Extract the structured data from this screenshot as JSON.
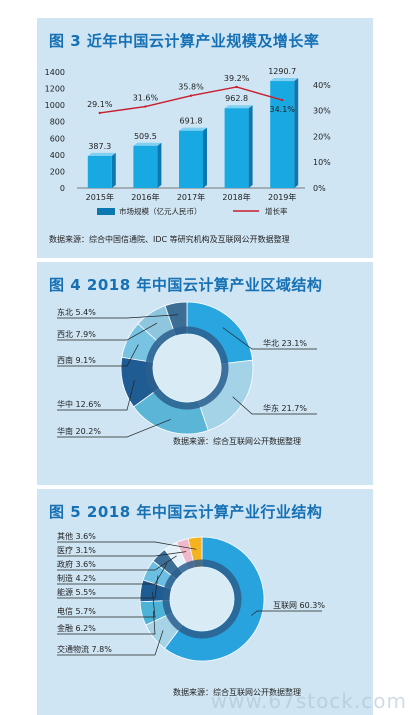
{
  "colors": {
    "panel_bg": "#cfe5f3",
    "title": "#1570b4",
    "bar": "#19a9e2",
    "bar_side": "#0d77b0",
    "line": "#c81e2e",
    "donut_dark": "#2b5f8e"
  },
  "figure3": {
    "title": "图 3  近年中国云计算产业规模及增长率",
    "source": "数据来源：综合中国信通院、IDC 等研究机构及互联网公开数据整理"
  },
  "figure4": {
    "title": "图 4  2018 年中国云计算产业区域结构",
    "source": "数据来源：综合互联网公开数据整理"
  },
  "figure5": {
    "title": "图 5  2018 年中国云计算产业行业结构",
    "source": "数据来源：综合互联网公开数据整理"
  },
  "watermark": "www.67stock.com",
  "chart_data": [
    {
      "type": "bar",
      "categories": [
        "2015年",
        "2016年",
        "2017年",
        "2018年",
        "2019年"
      ],
      "series": [
        {
          "name": "市场规模（亿元人民币）",
          "type": "bar",
          "axis": "left",
          "values": [
            387.3,
            509.5,
            691.8,
            962.8,
            1290.7
          ],
          "labels": [
            "387.3",
            "509.5",
            "691.8",
            "962.8",
            "1290.7"
          ]
        },
        {
          "name": "增长率",
          "type": "line",
          "axis": "right",
          "values": [
            29.1,
            31.6,
            35.8,
            39.2,
            34.1
          ],
          "labels": [
            "29.1%",
            "31.6%",
            "35.8%",
            "39.2%",
            "34.1%"
          ]
        }
      ],
      "ylim": [
        0,
        1400
      ],
      "yticks": [
        "0",
        "200",
        "400",
        "600",
        "800",
        "1000",
        "1200",
        "1400"
      ],
      "y2lim": [
        0,
        45
      ],
      "y2ticks": [
        "0%",
        "10%",
        "20%",
        "30%",
        "40%"
      ],
      "legend": "bottom"
    },
    {
      "type": "pie",
      "style": "donut",
      "slices": [
        {
          "label": "华北 23.1%",
          "value": 23.1,
          "color": "#29a6df"
        },
        {
          "label": "华东 21.7%",
          "value": 21.7,
          "color": "#a4d2e6"
        },
        {
          "label": "华南 20.2%",
          "value": 20.2,
          "color": "#5bb5d6"
        },
        {
          "label": "华中 12.6%",
          "value": 12.6,
          "color": "#1f5c94"
        },
        {
          "label": "西南 9.1%",
          "value": 9.1,
          "color": "#78c3e2"
        },
        {
          "label": "西北 7.9%",
          "value": 7.9,
          "color": "#8ec6e0"
        },
        {
          "label": "东北 5.4%",
          "value": 5.4,
          "color": "#3c6e95"
        }
      ]
    },
    {
      "type": "pie",
      "style": "donut",
      "slices": [
        {
          "label": "互联网 60.3%",
          "value": 60.3,
          "color": "#29a3dd"
        },
        {
          "label": "交通物流 7.8%",
          "value": 7.8,
          "color": "#a7d3e6"
        },
        {
          "label": "金融 6.2%",
          "value": 6.2,
          "color": "#4cb2d7"
        },
        {
          "label": "电信 5.7%",
          "value": 5.7,
          "color": "#1e5c93"
        },
        {
          "label": "能源 5.5%",
          "value": 5.5,
          "color": "#6cbfe2"
        },
        {
          "label": "制造 4.2%",
          "value": 4.2,
          "color": "#3c6f97"
        },
        {
          "label": "政府 3.6%",
          "value": 3.6,
          "color": "#e6f2f9"
        },
        {
          "label": "医疗 3.1%",
          "value": 3.1,
          "color": "#efb9cb"
        },
        {
          "label": "其他 3.6%",
          "value": 3.6,
          "color": "#f5b321"
        }
      ]
    }
  ]
}
